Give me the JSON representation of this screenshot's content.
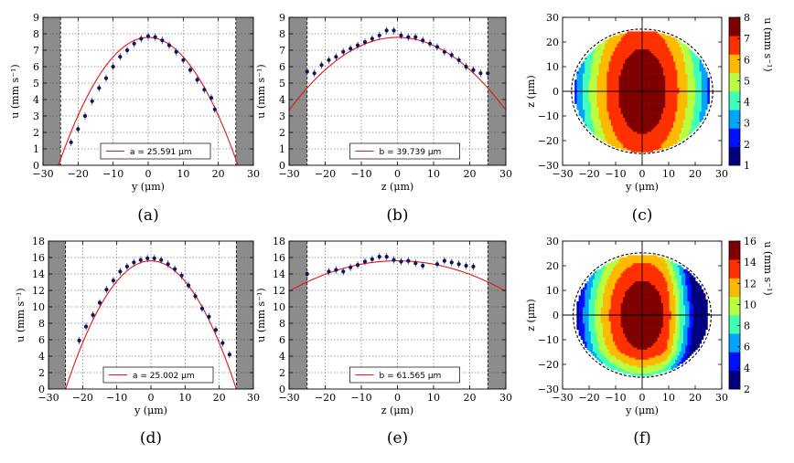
{
  "chart_data": [
    {
      "type": "line",
      "caption": "(a)",
      "xlabel": "y (μm)",
      "ylabel": "u (mm s⁻¹)",
      "xlim": [
        -30,
        30
      ],
      "ylim": [
        0,
        9
      ],
      "xticks": [
        "−30",
        "−20",
        "−10",
        "0",
        "10",
        "20",
        "30"
      ],
      "yticks": [
        "0",
        "1",
        "2",
        "3",
        "4",
        "5",
        "6",
        "7",
        "8",
        "9"
      ],
      "wall_regions": [
        [
          -30,
          -25
        ],
        [
          25,
          30
        ]
      ],
      "grid": true,
      "legend_text": "a = 25.591 μm",
      "fit": {
        "peak": 7.78,
        "half_width": 25.591
      },
      "series": [
        {
          "x": [
            -22,
            -20,
            -18,
            -16,
            -14,
            -12,
            -10,
            -8,
            -6,
            -4,
            -2,
            0,
            2,
            4,
            6,
            8,
            10,
            12,
            14,
            16,
            18,
            19
          ],
          "y": [
            1.4,
            2.2,
            3.0,
            3.9,
            4.7,
            5.3,
            6.0,
            6.6,
            7.0,
            7.4,
            7.7,
            7.85,
            7.8,
            7.6,
            7.3,
            6.9,
            6.4,
            5.8,
            5.2,
            4.6,
            4.1,
            3.4
          ]
        }
      ]
    },
    {
      "type": "line",
      "caption": "(b)",
      "xlabel": "z (μm)",
      "ylabel": "u (mm s⁻¹)",
      "xlim": [
        -30,
        30
      ],
      "ylim": [
        0,
        9
      ],
      "xticks": [
        "−30",
        "−20",
        "−10",
        "0",
        "10",
        "20",
        "30"
      ],
      "yticks": [
        "0",
        "1",
        "2",
        "3",
        "4",
        "5",
        "6",
        "7",
        "8",
        "9"
      ],
      "wall_regions": [
        [
          -30,
          -25
        ],
        [
          25,
          30
        ]
      ],
      "grid": true,
      "legend_text": "b = 39.739 μm",
      "fit": {
        "peak": 7.78,
        "half_width": 39.739
      },
      "series": [
        {
          "x": [
            -25,
            -23,
            -21,
            -19,
            -17,
            -15,
            -13,
            -11,
            -9,
            -7,
            -5,
            -3,
            -1,
            1,
            3,
            5,
            7,
            9,
            11,
            13,
            15,
            17,
            19,
            21,
            23,
            25
          ],
          "y": [
            5.7,
            5.6,
            6.1,
            6.4,
            6.6,
            6.9,
            7.1,
            7.3,
            7.5,
            7.7,
            7.9,
            8.2,
            8.2,
            7.9,
            7.8,
            7.8,
            7.6,
            7.4,
            7.2,
            6.9,
            6.7,
            6.4,
            6.0,
            5.8,
            5.6,
            5.6
          ]
        }
      ]
    },
    {
      "type": "heatmap",
      "caption": "(c)",
      "xlabel": "y (μm)",
      "ylabel": "z (μm)",
      "xlim": [
        -30,
        30
      ],
      "ylim": [
        -30,
        30
      ],
      "xticks": [
        "−30",
        "−20",
        "−10",
        "0",
        "10",
        "20",
        "30"
      ],
      "yticks": [
        "−30",
        "−20",
        "−10",
        "0",
        "10",
        "20",
        "30"
      ],
      "colorbar": {
        "label": "u (mm s⁻¹)",
        "min": 1,
        "max": 8,
        "ticks": [
          "1",
          "2",
          "3",
          "4",
          "5",
          "6",
          "7",
          "8"
        ]
      },
      "ellipse": {
        "a": 25.591,
        "b": 24.5
      },
      "peak": 7.8,
      "edge_fraction": 0.3,
      "shape": "uniform"
    },
    {
      "type": "line",
      "caption": "(d)",
      "xlabel": "y (μm)",
      "ylabel": "u (mm s⁻¹)",
      "xlim": [
        -30,
        30
      ],
      "ylim": [
        0,
        18
      ],
      "xticks": [
        "−30",
        "−20",
        "−10",
        "0",
        "10",
        "20",
        "30"
      ],
      "yticks": [
        "0",
        "2",
        "4",
        "6",
        "8",
        "10",
        "12",
        "14",
        "16",
        "18"
      ],
      "wall_regions": [
        [
          -30,
          -25
        ],
        [
          25,
          30
        ]
      ],
      "grid": true,
      "legend_text": "a = 25.002 μm",
      "fit": {
        "peak": 15.6,
        "half_width": 25.002
      },
      "series": [
        {
          "x": [
            -21,
            -19,
            -17,
            -15,
            -13,
            -11,
            -9,
            -7,
            -5,
            -3,
            -1,
            1,
            3,
            5,
            7,
            9,
            11,
            13,
            15,
            17,
            19,
            21,
            23
          ],
          "y": [
            5.9,
            7.6,
            9.0,
            10.5,
            12.1,
            13.2,
            14.3,
            14.9,
            15.4,
            15.7,
            15.9,
            15.9,
            15.7,
            15.2,
            14.6,
            13.8,
            12.6,
            11.3,
            9.8,
            8.8,
            7.2,
            5.6,
            4.2
          ]
        }
      ]
    },
    {
      "type": "line",
      "caption": "(e)",
      "xlabel": "z (μm)",
      "ylabel": "u (mm s⁻¹)",
      "xlim": [
        -30,
        30
      ],
      "ylim": [
        0,
        18
      ],
      "xticks": [
        "−30",
        "−20",
        "−10",
        "0",
        "10",
        "20",
        "30"
      ],
      "yticks": [
        "0",
        "2",
        "4",
        "6",
        "8",
        "10",
        "12",
        "14",
        "16",
        "18"
      ],
      "wall_regions": [
        [
          -30,
          -25
        ],
        [
          25,
          30
        ]
      ],
      "grid": true,
      "legend_text": "b = 61.565 μm",
      "fit": {
        "peak": 15.6,
        "half_width": 61.565
      },
      "series": [
        {
          "x": [
            -25,
            -19,
            -17,
            -15,
            -13,
            -11,
            -9,
            -7,
            -5,
            -3,
            -1,
            1,
            3,
            5,
            7,
            11,
            13,
            15,
            17,
            19,
            21
          ],
          "y": [
            14.0,
            14.3,
            14.5,
            14.3,
            14.8,
            15.1,
            15.5,
            15.8,
            16.1,
            16.1,
            15.7,
            15.5,
            15.6,
            15.3,
            15.0,
            15.2,
            15.6,
            15.4,
            15.2,
            15.0,
            14.9
          ]
        }
      ]
    },
    {
      "type": "heatmap",
      "caption": "(f)",
      "xlabel": "y (μm)",
      "ylabel": "z (μm)",
      "xlim": [
        -30,
        30
      ],
      "ylim": [
        -30,
        30
      ],
      "xticks": [
        "−30",
        "−20",
        "−10",
        "0",
        "10",
        "20",
        "30"
      ],
      "yticks": [
        "−30",
        "−20",
        "−10",
        "0",
        "10",
        "20",
        "30"
      ],
      "colorbar": {
        "label": "u (mm s⁻¹)",
        "min": 2,
        "max": 16,
        "ticks": [
          "2",
          "4",
          "6",
          "8",
          "10",
          "12",
          "14",
          "16"
        ]
      },
      "ellipse": {
        "a": 25.002,
        "b": 24.5
      },
      "peak": 15.6,
      "edge_fraction": 0.25,
      "shape": "skewed"
    }
  ],
  "jet_colors": [
    "#00007f",
    "#0010ff",
    "#00a4ff",
    "#40ffb7",
    "#b7ff40",
    "#ffb900",
    "#ff3000",
    "#7f0000"
  ]
}
